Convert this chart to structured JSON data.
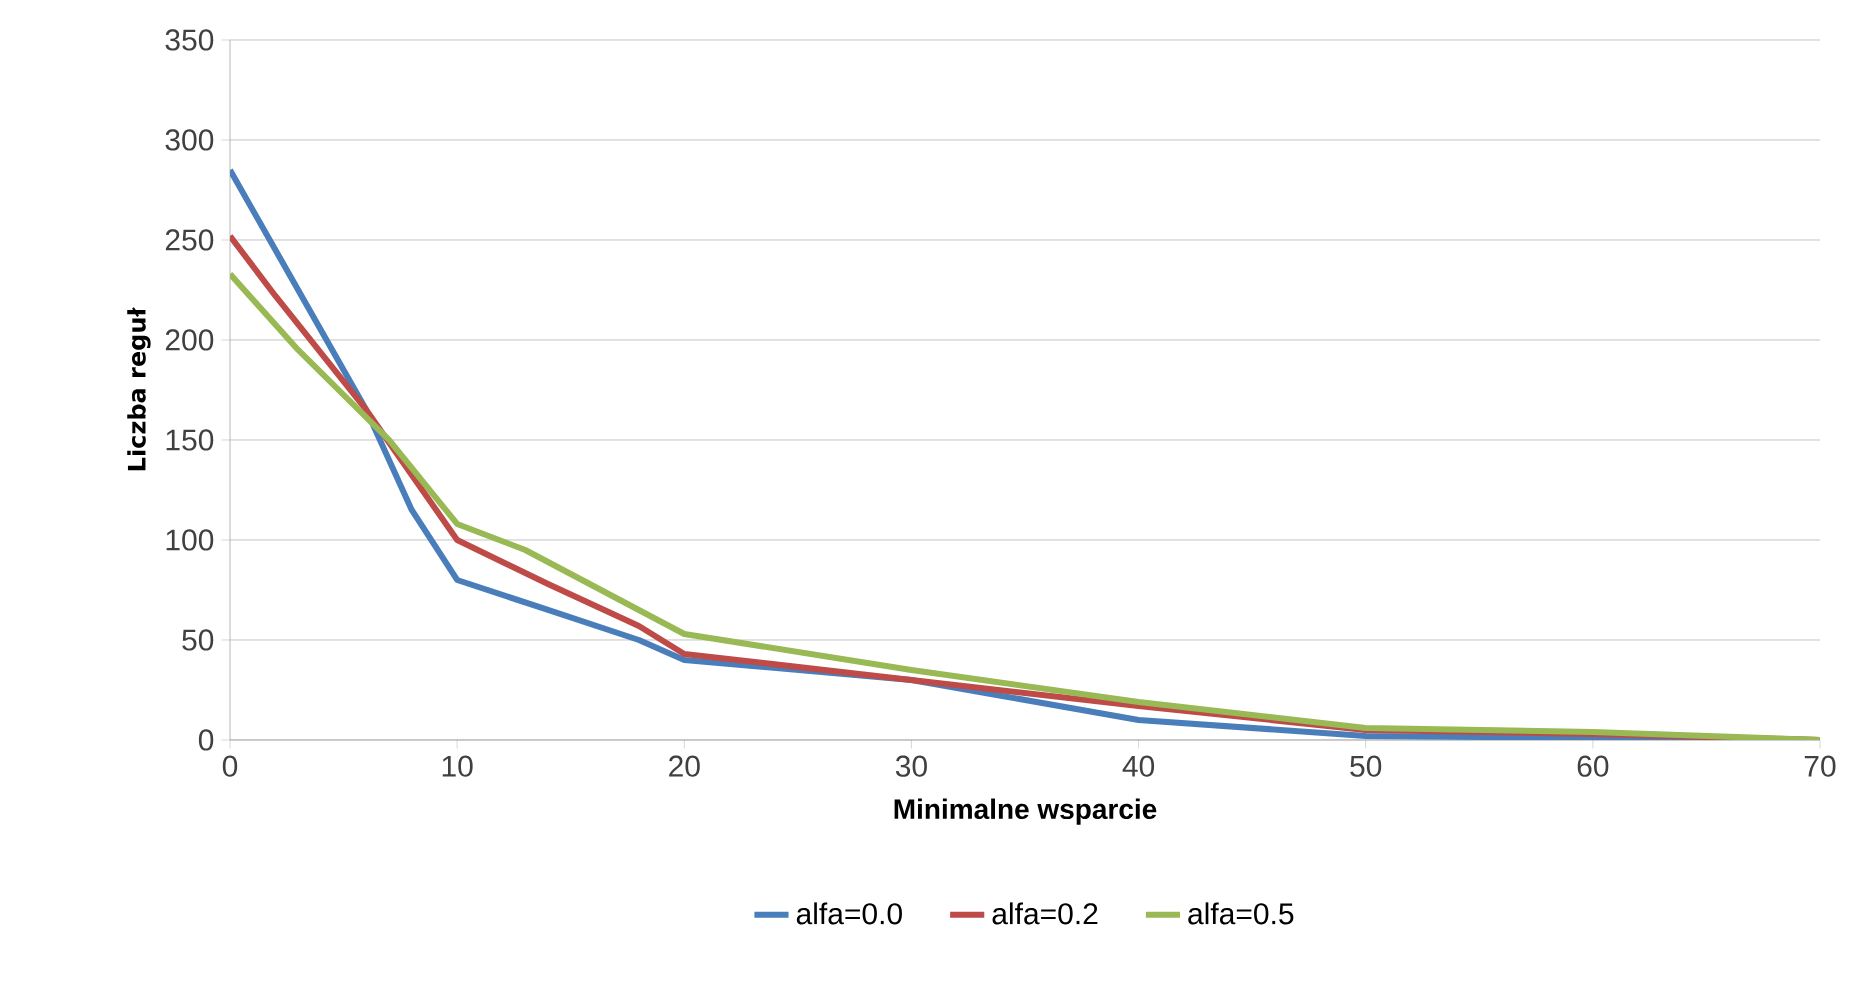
{
  "chart_data": {
    "type": "line",
    "xlabel": "Minimalne wsparcie",
    "ylabel": "Liczba reguł",
    "xlim": [
      0,
      70
    ],
    "xticks": [
      0,
      10,
      20,
      30,
      40,
      50,
      60,
      70
    ],
    "ylim": [
      0,
      350
    ],
    "yticks": [
      0,
      50,
      100,
      150,
      200,
      250,
      300,
      350
    ],
    "grid": "y",
    "legend": "bottom",
    "marker": "none",
    "line_style": "solid",
    "series": [
      {
        "name": "alfa=0.0",
        "color": "#4a7ebb",
        "x": [
          0,
          3,
          6,
          8,
          10,
          14,
          18,
          20,
          30,
          34,
          40,
          50,
          60,
          70
        ],
        "values": [
          285,
          225,
          165,
          115,
          80,
          65,
          50,
          40,
          30,
          22,
          10,
          2,
          1,
          0
        ]
      },
      {
        "name": "alfa=0.2",
        "color": "#be4b48",
        "x": [
          0,
          2,
          6,
          10,
          14,
          18,
          20,
          30,
          40,
          50,
          60,
          70
        ],
        "values": [
          252,
          222,
          165,
          100,
          78,
          57,
          43,
          30,
          17,
          5,
          3,
          0
        ]
      },
      {
        "name": "alfa=0.5",
        "color": "#98b954",
        "x": [
          0,
          3,
          7,
          10,
          13,
          18,
          20,
          30,
          40,
          50,
          60,
          70
        ],
        "values": [
          233,
          195,
          150,
          108,
          95,
          65,
          53,
          35,
          19,
          6,
          4,
          0
        ]
      }
    ]
  }
}
